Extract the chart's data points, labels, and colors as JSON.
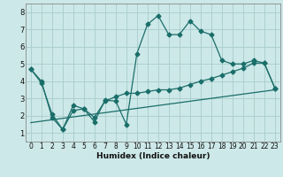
{
  "bg_color": "#cde8e8",
  "grid_color": "#a8cccc",
  "line_color": "#1a6e6a",
  "line1_x": [
    0,
    1,
    2,
    3,
    4,
    5,
    6,
    7,
    8,
    9,
    10,
    11,
    12,
    13,
    14,
    15,
    16,
    17,
    18,
    19,
    20,
    21,
    22,
    23
  ],
  "line1_y": [
    4.7,
    4.0,
    1.9,
    1.2,
    2.6,
    2.4,
    1.65,
    2.9,
    2.85,
    1.5,
    5.6,
    7.3,
    7.8,
    6.7,
    6.7,
    7.5,
    6.9,
    6.7,
    5.2,
    5.0,
    5.0,
    5.2,
    5.05,
    3.6
  ],
  "line2_x": [
    0,
    1,
    2,
    3,
    4,
    5,
    6,
    7,
    8,
    9,
    10,
    11,
    12,
    13,
    14,
    15,
    16,
    17,
    18,
    19,
    20,
    21,
    22,
    23
  ],
  "line2_y": [
    4.7,
    3.9,
    2.1,
    1.2,
    2.3,
    2.4,
    1.9,
    2.85,
    3.1,
    3.3,
    3.3,
    3.4,
    3.5,
    3.5,
    3.6,
    3.8,
    4.0,
    4.15,
    4.35,
    4.55,
    4.75,
    5.05,
    5.05,
    3.6
  ],
  "line3_x": [
    0,
    23
  ],
  "line3_y": [
    1.6,
    3.5
  ],
  "xlabel": "Humidex (Indice chaleur)",
  "xlim": [
    -0.5,
    23.5
  ],
  "ylim": [
    0.5,
    8.5
  ],
  "xticks": [
    0,
    1,
    2,
    3,
    4,
    5,
    6,
    7,
    8,
    9,
    10,
    11,
    12,
    13,
    14,
    15,
    16,
    17,
    18,
    19,
    20,
    21,
    22,
    23
  ],
  "yticks": [
    1,
    2,
    3,
    4,
    5,
    6,
    7,
    8
  ]
}
